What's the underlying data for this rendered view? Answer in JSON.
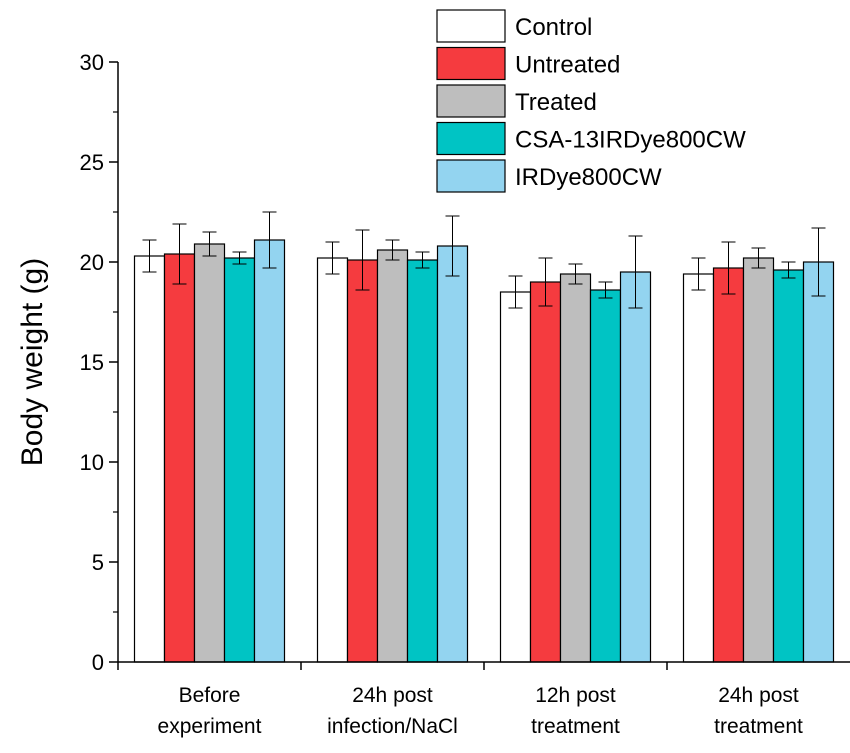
{
  "chart_data": {
    "type": "bar",
    "ylabel": "Body weight (g)",
    "ylim": [
      0,
      30
    ],
    "yticks": [
      0,
      5,
      10,
      15,
      20,
      25,
      30
    ],
    "grid": false,
    "legend_position": "top-right",
    "categories": [
      [
        "Before",
        "experiment"
      ],
      [
        "24h post",
        "infection/NaCl"
      ],
      [
        "12h post",
        "treatment"
      ],
      [
        "24h post",
        "treatment"
      ]
    ],
    "series": [
      {
        "name": "Control",
        "color": "#ffffff",
        "values": [
          20.3,
          20.2,
          18.5,
          19.4
        ],
        "errors": [
          0.8,
          0.8,
          0.8,
          0.8
        ]
      },
      {
        "name": "Untreated",
        "color": "#f53b3f",
        "values": [
          20.4,
          20.1,
          19.0,
          19.7
        ],
        "errors": [
          1.5,
          1.5,
          1.2,
          1.3
        ]
      },
      {
        "name": "Treated",
        "color": "#bebebe",
        "values": [
          20.9,
          20.6,
          19.4,
          20.2
        ],
        "errors": [
          0.6,
          0.5,
          0.5,
          0.5
        ]
      },
      {
        "name": "CSA-13IRDye800CW",
        "color": "#00c4c4",
        "values": [
          20.2,
          20.1,
          18.6,
          19.6
        ],
        "errors": [
          0.3,
          0.4,
          0.4,
          0.4
        ]
      },
      {
        "name": "IRDye800CW",
        "color": "#93d4f0",
        "values": [
          21.1,
          20.8,
          19.5,
          20.0
        ],
        "errors": [
          1.4,
          1.5,
          1.8,
          1.7
        ]
      }
    ]
  }
}
